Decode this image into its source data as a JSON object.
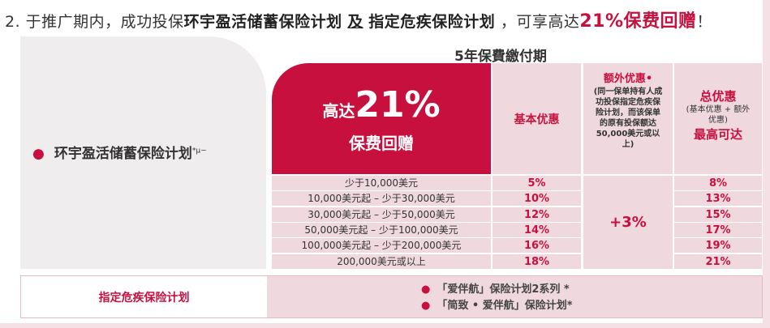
{
  "headline": {
    "prefix": "2. 于推广期内，成功投保",
    "plan1": "环宇盈活储蓄保险计划",
    "and": "及",
    "plan2": "指定危疾保险计划",
    "mid": "，可享高达",
    "highlight": "21%保费回赠",
    "end": "！"
  },
  "plan": {
    "name": "环宇盈活储蓄保险计划",
    "marks": "*μ~"
  },
  "period": "5年保費繳付期",
  "promo": {
    "prefix": "高达",
    "value": "21%",
    "suffix": "保费回赠"
  },
  "headers": {
    "basic": "基本优惠",
    "extra_title": "额外优惠•",
    "extra_note": "(同一保单持有人成功投保指定危疾保险计划，而该保单的原有投保额达50,000美元或以上)",
    "total_title": "总优惠",
    "total_note": "(基本优惠 + 额外优惠)",
    "total_sub": "最高可达"
  },
  "rows": [
    {
      "range": "少于10,000美元",
      "basic": "5%",
      "total": "8%"
    },
    {
      "range": "10,000美元起 – 少于30,000美元",
      "basic": "10%",
      "total": "13%"
    },
    {
      "range": "30,000美元起 – 少于50,000美元",
      "basic": "12%",
      "total": "15%"
    },
    {
      "range": "50,000美元起 – 少于100,000美元",
      "basic": "14%",
      "total": "17%"
    },
    {
      "range": "100,000美元起 – 少于200,000美元",
      "basic": "16%",
      "total": "19%"
    },
    {
      "range": "200,000美元或以上",
      "basic": "18%",
      "total": "21%"
    }
  ],
  "extra_value": "+3%",
  "critical": {
    "label": "指定危疾保险计划",
    "items": [
      "「爱伴航」保险计划2系列 *",
      "「简致 • 爱伴航」保险计划*"
    ]
  },
  "colors": {
    "accent": "#c8103e",
    "cell": "#efd9df",
    "panel": "#efedee"
  }
}
